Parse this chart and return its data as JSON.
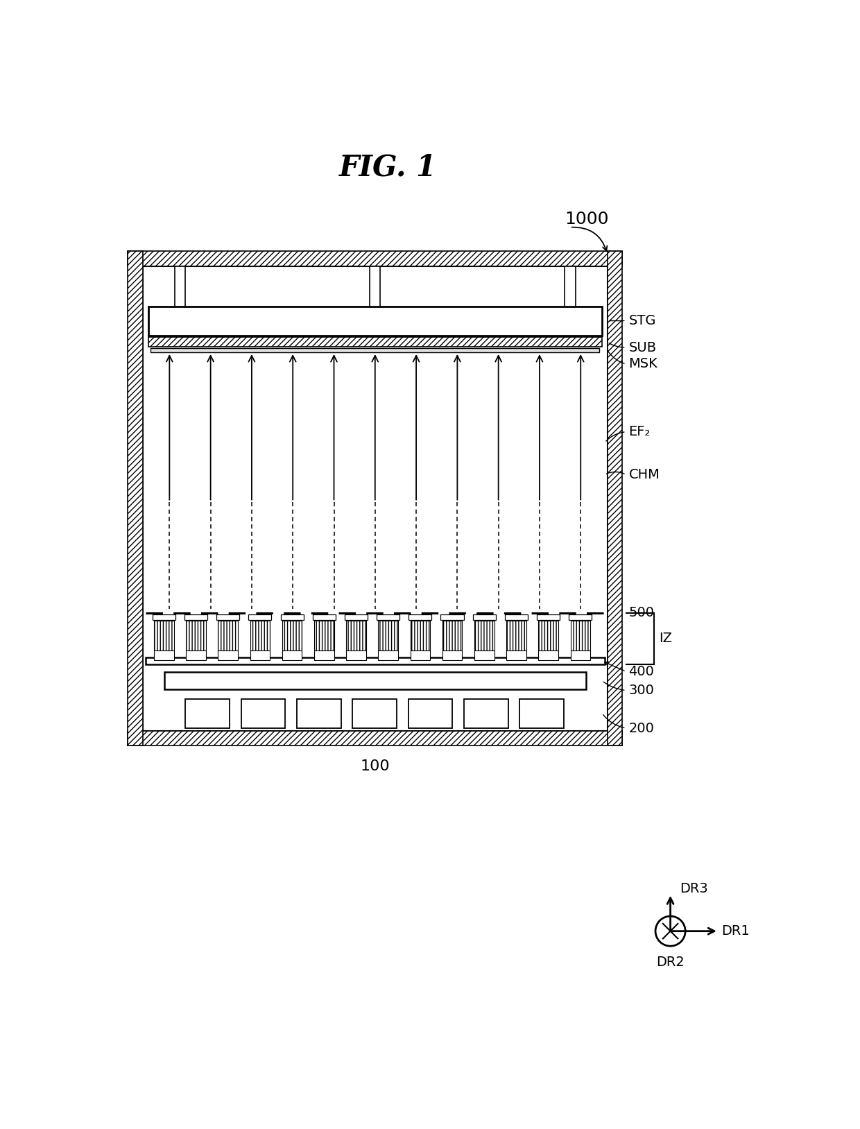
{
  "title": "FIG. 1",
  "bg_color": "#ffffff",
  "fig_width": 12.4,
  "fig_height": 16.28,
  "labels": {
    "main_box": "1000",
    "stg": "STG",
    "sub": "SUB",
    "msk": "MSK",
    "ef2": "EF₂",
    "chm": "CHM",
    "iz": "IZ",
    "num400": "400",
    "num500": "500",
    "num300": "300",
    "num200": "200",
    "num100": "100",
    "dr1": "DR1",
    "dr2": "DR2",
    "dr3": "DR3"
  },
  "n_arrows": 11,
  "n_sources": 14
}
